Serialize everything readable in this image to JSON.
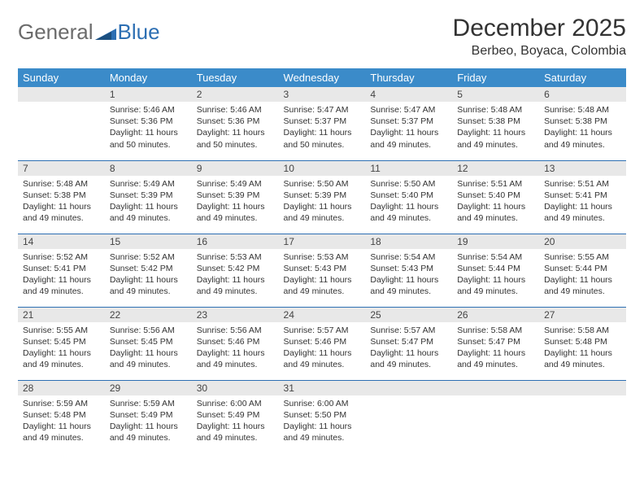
{
  "brand": {
    "general": "General",
    "blue": "Blue"
  },
  "title": "December 2025",
  "location": "Berbeo, Boyaca, Colombia",
  "colors": {
    "header_bg": "#3b8bc9",
    "header_text": "#ffffff",
    "row_border": "#2d6fb3",
    "daynum_bg": "#e8e8e8",
    "brand_gray": "#6b6b6b",
    "brand_blue": "#2d6fb3"
  },
  "weekdays": [
    "Sunday",
    "Monday",
    "Tuesday",
    "Wednesday",
    "Thursday",
    "Friday",
    "Saturday"
  ],
  "weeks": [
    [
      {
        "n": "",
        "sr": "",
        "ss": "",
        "dl": ""
      },
      {
        "n": "1",
        "sr": "Sunrise: 5:46 AM",
        "ss": "Sunset: 5:36 PM",
        "dl": "Daylight: 11 hours and 50 minutes."
      },
      {
        "n": "2",
        "sr": "Sunrise: 5:46 AM",
        "ss": "Sunset: 5:36 PM",
        "dl": "Daylight: 11 hours and 50 minutes."
      },
      {
        "n": "3",
        "sr": "Sunrise: 5:47 AM",
        "ss": "Sunset: 5:37 PM",
        "dl": "Daylight: 11 hours and 50 minutes."
      },
      {
        "n": "4",
        "sr": "Sunrise: 5:47 AM",
        "ss": "Sunset: 5:37 PM",
        "dl": "Daylight: 11 hours and 49 minutes."
      },
      {
        "n": "5",
        "sr": "Sunrise: 5:48 AM",
        "ss": "Sunset: 5:38 PM",
        "dl": "Daylight: 11 hours and 49 minutes."
      },
      {
        "n": "6",
        "sr": "Sunrise: 5:48 AM",
        "ss": "Sunset: 5:38 PM",
        "dl": "Daylight: 11 hours and 49 minutes."
      }
    ],
    [
      {
        "n": "7",
        "sr": "Sunrise: 5:48 AM",
        "ss": "Sunset: 5:38 PM",
        "dl": "Daylight: 11 hours and 49 minutes."
      },
      {
        "n": "8",
        "sr": "Sunrise: 5:49 AM",
        "ss": "Sunset: 5:39 PM",
        "dl": "Daylight: 11 hours and 49 minutes."
      },
      {
        "n": "9",
        "sr": "Sunrise: 5:49 AM",
        "ss": "Sunset: 5:39 PM",
        "dl": "Daylight: 11 hours and 49 minutes."
      },
      {
        "n": "10",
        "sr": "Sunrise: 5:50 AM",
        "ss": "Sunset: 5:39 PM",
        "dl": "Daylight: 11 hours and 49 minutes."
      },
      {
        "n": "11",
        "sr": "Sunrise: 5:50 AM",
        "ss": "Sunset: 5:40 PM",
        "dl": "Daylight: 11 hours and 49 minutes."
      },
      {
        "n": "12",
        "sr": "Sunrise: 5:51 AM",
        "ss": "Sunset: 5:40 PM",
        "dl": "Daylight: 11 hours and 49 minutes."
      },
      {
        "n": "13",
        "sr": "Sunrise: 5:51 AM",
        "ss": "Sunset: 5:41 PM",
        "dl": "Daylight: 11 hours and 49 minutes."
      }
    ],
    [
      {
        "n": "14",
        "sr": "Sunrise: 5:52 AM",
        "ss": "Sunset: 5:41 PM",
        "dl": "Daylight: 11 hours and 49 minutes."
      },
      {
        "n": "15",
        "sr": "Sunrise: 5:52 AM",
        "ss": "Sunset: 5:42 PM",
        "dl": "Daylight: 11 hours and 49 minutes."
      },
      {
        "n": "16",
        "sr": "Sunrise: 5:53 AM",
        "ss": "Sunset: 5:42 PM",
        "dl": "Daylight: 11 hours and 49 minutes."
      },
      {
        "n": "17",
        "sr": "Sunrise: 5:53 AM",
        "ss": "Sunset: 5:43 PM",
        "dl": "Daylight: 11 hours and 49 minutes."
      },
      {
        "n": "18",
        "sr": "Sunrise: 5:54 AM",
        "ss": "Sunset: 5:43 PM",
        "dl": "Daylight: 11 hours and 49 minutes."
      },
      {
        "n": "19",
        "sr": "Sunrise: 5:54 AM",
        "ss": "Sunset: 5:44 PM",
        "dl": "Daylight: 11 hours and 49 minutes."
      },
      {
        "n": "20",
        "sr": "Sunrise: 5:55 AM",
        "ss": "Sunset: 5:44 PM",
        "dl": "Daylight: 11 hours and 49 minutes."
      }
    ],
    [
      {
        "n": "21",
        "sr": "Sunrise: 5:55 AM",
        "ss": "Sunset: 5:45 PM",
        "dl": "Daylight: 11 hours and 49 minutes."
      },
      {
        "n": "22",
        "sr": "Sunrise: 5:56 AM",
        "ss": "Sunset: 5:45 PM",
        "dl": "Daylight: 11 hours and 49 minutes."
      },
      {
        "n": "23",
        "sr": "Sunrise: 5:56 AM",
        "ss": "Sunset: 5:46 PM",
        "dl": "Daylight: 11 hours and 49 minutes."
      },
      {
        "n": "24",
        "sr": "Sunrise: 5:57 AM",
        "ss": "Sunset: 5:46 PM",
        "dl": "Daylight: 11 hours and 49 minutes."
      },
      {
        "n": "25",
        "sr": "Sunrise: 5:57 AM",
        "ss": "Sunset: 5:47 PM",
        "dl": "Daylight: 11 hours and 49 minutes."
      },
      {
        "n": "26",
        "sr": "Sunrise: 5:58 AM",
        "ss": "Sunset: 5:47 PM",
        "dl": "Daylight: 11 hours and 49 minutes."
      },
      {
        "n": "27",
        "sr": "Sunrise: 5:58 AM",
        "ss": "Sunset: 5:48 PM",
        "dl": "Daylight: 11 hours and 49 minutes."
      }
    ],
    [
      {
        "n": "28",
        "sr": "Sunrise: 5:59 AM",
        "ss": "Sunset: 5:48 PM",
        "dl": "Daylight: 11 hours and 49 minutes."
      },
      {
        "n": "29",
        "sr": "Sunrise: 5:59 AM",
        "ss": "Sunset: 5:49 PM",
        "dl": "Daylight: 11 hours and 49 minutes."
      },
      {
        "n": "30",
        "sr": "Sunrise: 6:00 AM",
        "ss": "Sunset: 5:49 PM",
        "dl": "Daylight: 11 hours and 49 minutes."
      },
      {
        "n": "31",
        "sr": "Sunrise: 6:00 AM",
        "ss": "Sunset: 5:50 PM",
        "dl": "Daylight: 11 hours and 49 minutes."
      },
      {
        "n": "",
        "sr": "",
        "ss": "",
        "dl": ""
      },
      {
        "n": "",
        "sr": "",
        "ss": "",
        "dl": ""
      },
      {
        "n": "",
        "sr": "",
        "ss": "",
        "dl": ""
      }
    ]
  ]
}
